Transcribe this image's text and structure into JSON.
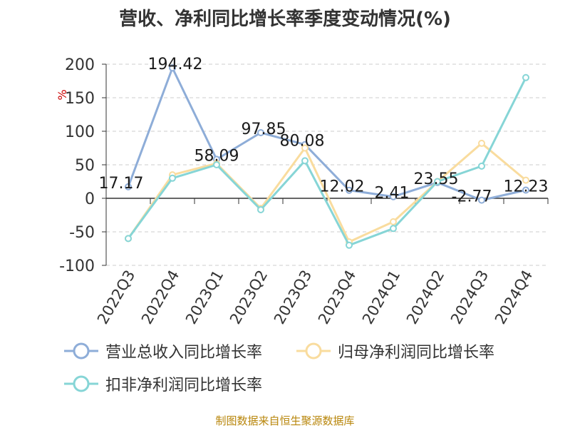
{
  "title": "营收、净利同比增长率季度变动情况(%)",
  "source_note": "制图数据来自恒生聚源数据库",
  "colors": {
    "revenue": "#8eadd8",
    "net_profit": "#f9dc9e",
    "deducted_profit": "#86d5d6",
    "axis": "#333333",
    "grid": "#cccccc",
    "unit_label": "#cc0000"
  },
  "chart_data": {
    "type": "line",
    "title": "营收、净利同比增长率季度变动情况(%)",
    "ylabel": "%",
    "ylim": [
      -100,
      200
    ],
    "yticks": [
      200,
      150,
      100,
      50,
      0,
      -50,
      -100
    ],
    "grid": true,
    "legend_position": "bottom",
    "categories": [
      "2022Q3",
      "2022Q4",
      "2023Q1",
      "2023Q2",
      "2023Q3",
      "2023Q4",
      "2024Q1",
      "2024Q2",
      "2024Q3",
      "2024Q4"
    ],
    "series": [
      {
        "name": "营业总收入同比增长率",
        "color": "#8eadd8",
        "values": [
          17.17,
          194.42,
          58.09,
          97.85,
          80.08,
          12.02,
          2.41,
          23.55,
          -2.77,
          12.23
        ],
        "labels": [
          "17.17",
          "194.42",
          "58.09",
          "97.85",
          "80.08",
          "12.02",
          "2.41",
          "23.55",
          "-2.77",
          "12.23"
        ]
      },
      {
        "name": "归母净利润同比增长率",
        "color": "#f9dc9e",
        "values": [
          -60,
          35,
          52,
          -15,
          75,
          -65,
          -35,
          25,
          82,
          27
        ]
      },
      {
        "name": "扣非净利润同比增长率",
        "color": "#86d5d6",
        "values": [
          -60,
          30,
          50,
          -17,
          56,
          -70,
          -45,
          25,
          48,
          180
        ]
      }
    ]
  }
}
